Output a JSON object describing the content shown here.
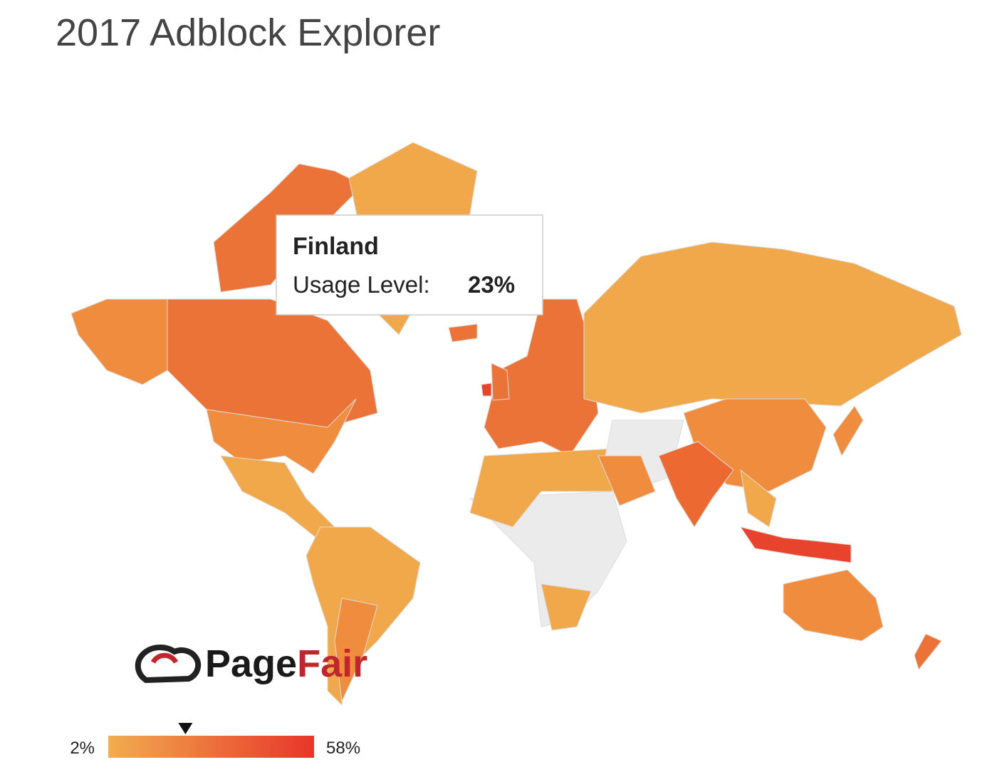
{
  "title": "2017 Adblock Explorer",
  "map": {
    "tooltip": {
      "country": "Finland",
      "metric": "Usage Level:",
      "value": 23,
      "value_label": "23%"
    },
    "legend": {
      "min": {
        "value": 2,
        "label": "2%"
      },
      "max": {
        "value": 58,
        "label": "58%"
      },
      "colors": [
        "#f1ad4f",
        "#e8352a"
      ]
    },
    "logo": {
      "part1": "Page",
      "part2": "Fair"
    }
  }
}
